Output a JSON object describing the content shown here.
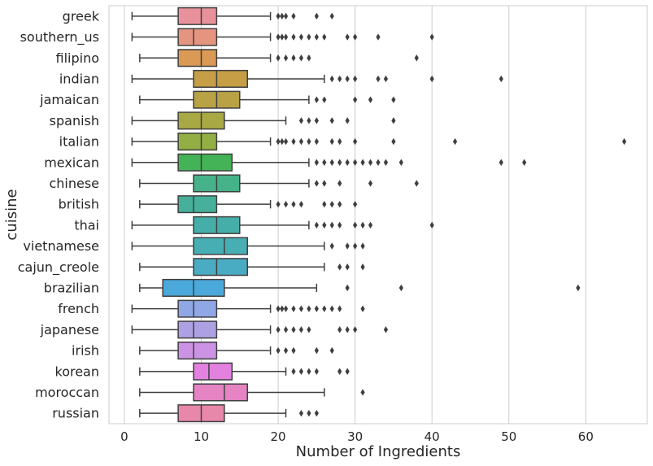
{
  "chart_data": {
    "type": "boxplot",
    "orientation": "horizontal",
    "xlabel": "Number of Ingredients",
    "ylabel": "cuisine",
    "xlim": [
      -2,
      68
    ],
    "xticks": [
      0,
      10,
      20,
      30,
      40,
      50,
      60
    ],
    "grid": "vertical",
    "categories": [
      {
        "name": "greek",
        "min": 1,
        "q1": 7,
        "median": 10,
        "q3": 12,
        "max": 19,
        "outliers": [
          20,
          20.5,
          21,
          22,
          25,
          27
        ],
        "color": "#e8919b"
      },
      {
        "name": "southern_us",
        "min": 1,
        "q1": 7,
        "median": 9,
        "q3": 12,
        "max": 19,
        "outliers": [
          20,
          20.5,
          21,
          22,
          23,
          24,
          25,
          26,
          29,
          30,
          33,
          40
        ],
        "color": "#e5957f"
      },
      {
        "name": "filipino",
        "min": 2,
        "q1": 7,
        "median": 10,
        "q3": 12,
        "max": 19,
        "outliers": [
          20,
          21,
          22,
          23,
          24,
          38
        ],
        "color": "#da9955"
      },
      {
        "name": "indian",
        "min": 1,
        "q1": 9,
        "median": 12,
        "q3": 16,
        "max": 26,
        "outliers": [
          27,
          28,
          29,
          30,
          33,
          34,
          40,
          49
        ],
        "color": "#c59e45"
      },
      {
        "name": "jamaican",
        "min": 2,
        "q1": 9,
        "median": 12,
        "q3": 15,
        "max": 24,
        "outliers": [
          25,
          26,
          30,
          32,
          35
        ],
        "color": "#b9a245"
      },
      {
        "name": "spanish",
        "min": 1,
        "q1": 7,
        "median": 10,
        "q3": 13,
        "max": 21,
        "outliers": [
          23,
          24,
          25,
          27,
          29,
          35
        ],
        "color": "#a8a845"
      },
      {
        "name": "italian",
        "min": 1,
        "q1": 7,
        "median": 10,
        "q3": 12,
        "max": 19,
        "outliers": [
          20,
          20.5,
          21,
          22,
          23,
          24,
          25,
          27,
          28,
          30,
          35,
          43,
          65
        ],
        "color": "#93ae45"
      },
      {
        "name": "mexican",
        "min": 1,
        "q1": 7,
        "median": 10,
        "q3": 14,
        "max": 24,
        "outliers": [
          25,
          26,
          27,
          28,
          29,
          30,
          31,
          32,
          33,
          34,
          36,
          49,
          52
        ],
        "color": "#44b357"
      },
      {
        "name": "chinese",
        "min": 2,
        "q1": 9,
        "median": 12,
        "q3": 15,
        "max": 24,
        "outliers": [
          25,
          26,
          28,
          32,
          38
        ],
        "color": "#45b28a"
      },
      {
        "name": "british",
        "min": 2,
        "q1": 7,
        "median": 9,
        "q3": 12,
        "max": 19,
        "outliers": [
          20,
          21,
          22,
          23,
          26,
          27,
          28,
          30
        ],
        "color": "#46b09a"
      },
      {
        "name": "thai",
        "min": 1,
        "q1": 9,
        "median": 12,
        "q3": 15,
        "max": 24,
        "outliers": [
          25,
          26,
          27,
          28,
          30,
          31,
          32,
          40
        ],
        "color": "#46aea8"
      },
      {
        "name": "vietnamese",
        "min": 1,
        "q1": 9,
        "median": 13,
        "q3": 16,
        "max": 26,
        "outliers": [
          27,
          29,
          30,
          31
        ],
        "color": "#47aeb4"
      },
      {
        "name": "cajun_creole",
        "min": 2,
        "q1": 9,
        "median": 12,
        "q3": 16,
        "max": 26,
        "outliers": [
          28,
          29,
          31
        ],
        "color": "#49acc2"
      },
      {
        "name": "brazilian",
        "min": 2,
        "q1": 5,
        "median": 9,
        "q3": 13,
        "max": 25,
        "outliers": [
          29,
          36,
          59
        ],
        "color": "#4ba8da"
      },
      {
        "name": "french",
        "min": 1,
        "q1": 7,
        "median": 9,
        "q3": 12,
        "max": 19,
        "outliers": [
          20,
          20.5,
          21,
          22,
          23,
          24,
          25,
          26,
          27,
          28,
          31
        ],
        "color": "#8fa7e4"
      },
      {
        "name": "japanese",
        "min": 1,
        "q1": 7,
        "median": 9,
        "q3": 12,
        "max": 19,
        "outliers": [
          20,
          21,
          22,
          23,
          24,
          28,
          29,
          30,
          34
        ],
        "color": "#aea1e3"
      },
      {
        "name": "irish",
        "min": 2,
        "q1": 7,
        "median": 9,
        "q3": 12,
        "max": 19,
        "outliers": [
          20,
          21,
          22,
          25,
          27
        ],
        "color": "#cc93e4"
      },
      {
        "name": "korean",
        "min": 2,
        "q1": 9,
        "median": 11,
        "q3": 14,
        "max": 21,
        "outliers": [
          22,
          23,
          24,
          25,
          28,
          29
        ],
        "color": "#e381e0"
      },
      {
        "name": "moroccan",
        "min": 2,
        "q1": 9,
        "median": 13,
        "q3": 16,
        "max": 26,
        "outliers": [
          31
        ],
        "color": "#e583c3"
      },
      {
        "name": "russian",
        "min": 2,
        "q1": 7,
        "median": 10,
        "q3": 13,
        "max": 21,
        "outliers": [
          23,
          24,
          25
        ],
        "color": "#e787aa"
      }
    ]
  }
}
